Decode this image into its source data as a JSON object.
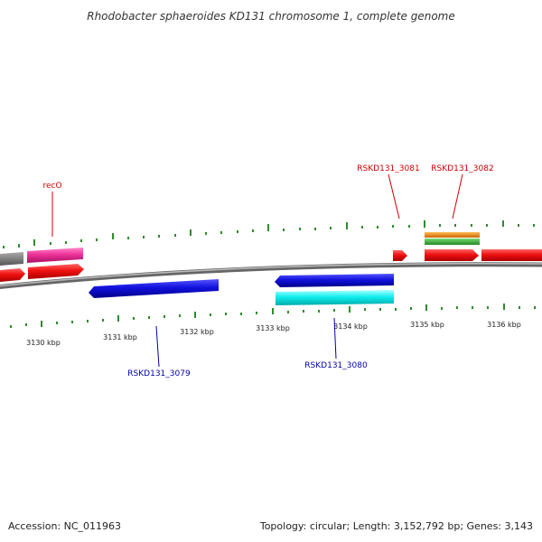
{
  "title": "Rhodobacter sphaeroides KD131 chromosome 1, complete genome",
  "footer": {
    "accession": "Accession: NC_011963",
    "topology": "Topology: circular; Length: 3,152,792 bp; Genes: 3,143"
  },
  "colors": {
    "backbone": "#8a8a8a",
    "tick": "#2e8b2e",
    "forward_label": "#cc0000",
    "reverse_label": "#0000aa",
    "pink": "#ee3399",
    "red": "#ee1111",
    "blue": "#1111dd",
    "cyan": "#11eeee",
    "orange": "#ee8800",
    "green": "#33bb33",
    "gray": "#777777"
  },
  "axis": {
    "tick_labels": [
      "3130 kbp",
      "3131 kbp",
      "3132 kbp",
      "3133 kbp",
      "3134 kbp",
      "3135 kbp",
      "3136 kbp"
    ]
  },
  "gene_labels": [
    {
      "text": "recO",
      "strand": "forward"
    },
    {
      "text": "RSKD131_3081",
      "strand": "forward"
    },
    {
      "text": "RSKD131_3082",
      "strand": "forward"
    },
    {
      "text": "RSKD131_3079",
      "strand": "reverse"
    },
    {
      "text": "RSKD131_3080",
      "strand": "reverse"
    }
  ]
}
